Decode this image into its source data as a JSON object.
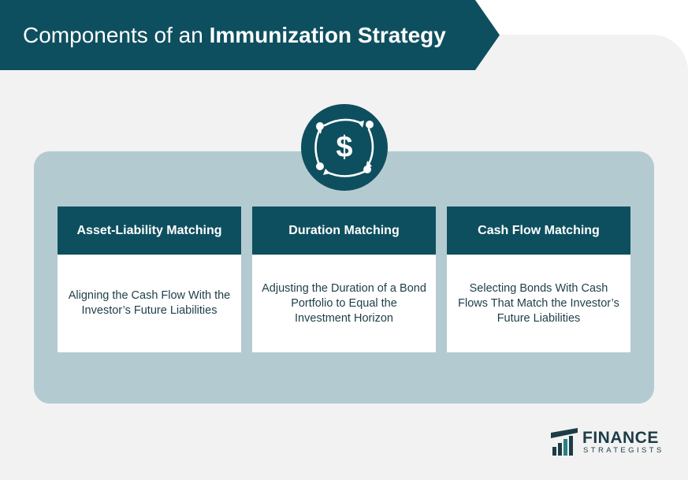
{
  "header": {
    "title_prefix": "Components of an",
    "title_emphasis": "Immunization Strategy"
  },
  "center_icon": {
    "icon": "dollar-cycle-icon"
  },
  "cards": [
    {
      "title": "Asset-Liability Matching",
      "description": "Aligning the Cash Flow With the Investor’s Future Liabilities"
    },
    {
      "title": "Duration Matching",
      "description": "Adjusting the Duration of a Bond Portfolio to Equal the Investment Horizon"
    },
    {
      "title": "Cash Flow Matching",
      "description": "Selecting Bonds With Cash Flows That Match the Investor’s Future Liabilities"
    }
  ],
  "logo": {
    "line1": "FINANCE",
    "line2": "STRATEGISTS",
    "icon": "finance-strategists-logo-icon"
  },
  "colors": {
    "primary": "#0e4f5f",
    "panel": "#b3cbd0",
    "background": "#f2f2f2",
    "text": "#1d3f47"
  }
}
